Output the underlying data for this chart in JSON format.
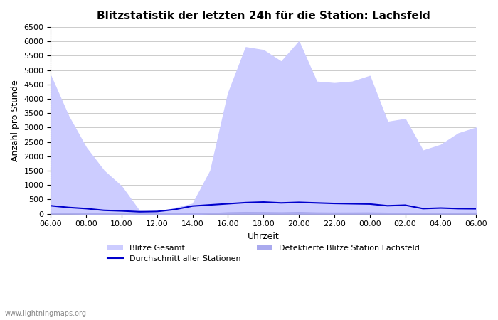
{
  "title": "Blitzstatistik der letzten 24h für die Station: Lachsfeld",
  "xlabel": "Uhrzeit",
  "ylabel": "Anzahl pro Stunde",
  "xlabels": [
    "06:00",
    "08:00",
    "10:00",
    "12:00",
    "14:00",
    "16:00",
    "18:00",
    "20:00",
    "22:00",
    "00:00",
    "02:00",
    "04:00",
    "06:00"
  ],
  "ylim": [
    0,
    6500
  ],
  "yticks": [
    0,
    500,
    1000,
    1500,
    2000,
    2500,
    3000,
    3500,
    4000,
    4500,
    5000,
    5500,
    6000,
    6500
  ],
  "background_color": "#ffffff",
  "grid_color": "#cccccc",
  "fill_gesamt_color": "#ccccff",
  "fill_station_color": "#aaaaee",
  "line_avg_color": "#0000cc",
  "watermark": "www.lightningmaps.org",
  "legend_gesamt": "Blitze Gesamt",
  "legend_avg": "Durchschnitt aller Stationen",
  "legend_station": "Detektierte Blitze Station Lachsfeld",
  "x_hours": [
    6,
    7,
    8,
    9,
    10,
    11,
    12,
    13,
    14,
    15,
    16,
    17,
    18,
    19,
    20,
    21,
    22,
    23,
    24,
    25,
    26,
    27,
    28,
    29,
    30
  ],
  "gesamt": [
    4800,
    3400,
    2300,
    1500,
    950,
    100,
    50,
    200,
    350,
    1500,
    4200,
    5800,
    5700,
    5300,
    6000,
    4600,
    4550,
    4600,
    4800,
    3200,
    3300,
    2200,
    2400,
    2800,
    3000
  ],
  "station": [
    30,
    20,
    15,
    10,
    8,
    5,
    3,
    5,
    10,
    20,
    50,
    60,
    55,
    50,
    60,
    45,
    40,
    42,
    45,
    35,
    30,
    28,
    30,
    35,
    38
  ],
  "avg": [
    280,
    220,
    180,
    120,
    100,
    70,
    80,
    150,
    270,
    310,
    350,
    390,
    410,
    380,
    400,
    380,
    360,
    350,
    340,
    280,
    300,
    180,
    200,
    180,
    175
  ]
}
